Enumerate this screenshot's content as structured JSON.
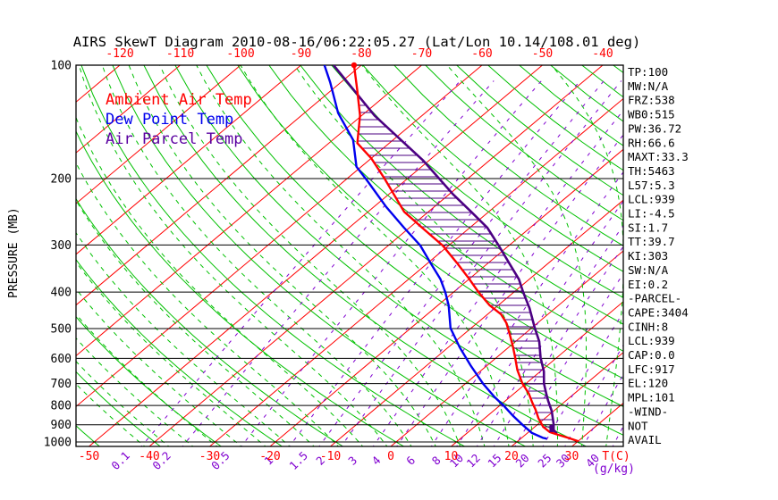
{
  "title": "AIRS SkewT Diagram 2010-08-16/06:22:05.27 (Lat/Lon 10.14/108.01 deg)",
  "colors": {
    "ambient": "#ff0000",
    "dewpoint": "#0000ee",
    "parcel": "#4b0082",
    "isotherm": "#ff0000",
    "dry_adiabat": "#00c000",
    "moist_adiabat": "#00c000",
    "mixing_ratio": "#8000d0",
    "pressure_line": "#000000",
    "hatch": "#4b0082"
  },
  "legend": [
    {
      "label": "Ambient Air Temp",
      "color": "#ff0000"
    },
    {
      "label": "Dew Point Temp",
      "color": "#0000ee"
    },
    {
      "label": "Air Parcel Temp",
      "color": "#5a00a0"
    }
  ],
  "axes": {
    "pressure_title": "PRESSURE (MB)",
    "pressure_ticks": [
      100,
      200,
      300,
      400,
      500,
      600,
      700,
      800,
      900,
      1000
    ],
    "top_temp_ticks": [
      -120,
      -110,
      -100,
      -90,
      -80,
      -70,
      -60,
      -50,
      -40
    ],
    "bottom_temp_ticks": [
      -50,
      -40,
      -30,
      -20,
      -10,
      0,
      10,
      20,
      30
    ],
    "temp_unit": "T(C)",
    "mixing_ratio_ticks": [
      0.1,
      0.2,
      0.5,
      1,
      1.5,
      2,
      3,
      4,
      6,
      8,
      10,
      12,
      15,
      20,
      25,
      30,
      40
    ],
    "mixing_ratio_unit": "(g/kg)"
  },
  "stats": [
    "TP:100",
    "MW:N/A",
    "FRZ:538",
    "WB0:515",
    "PW:36.72",
    "RH:66.6",
    "MAXT:33.3",
    "TH:5463",
    "L57:5.3",
    "LCL:939",
    "LI:-4.5",
    "SI:1.7",
    "TT:39.7",
    "KI:303",
    "SW:N/A",
    "EI:0.2",
    "-PARCEL-",
    "CAPE:3404",
    "CINH:8",
    "LCL:939",
    "CAP:0.0",
    "LFC:917",
    "EL:120",
    "MPL:101",
    "-WIND-",
    "NOT",
    "AVAIL"
  ],
  "chart_data": {
    "type": "line",
    "title": "AIRS SkewT Diagram 2010-08-16/06:22:05.27 (Lat/Lon 10.14/108.01 deg)",
    "xlabel": "T(C)",
    "ylabel": "PRESSURE (MB)",
    "y_scale": "log-inverted",
    "ylim": [
      1040,
      100
    ],
    "x_skew": "45deg-right",
    "xlim_bottom": [
      -52,
      38.5
    ],
    "xlim_top": [
      -127,
      -36.5
    ],
    "grid": {
      "isotherms_C": {
        "from": -120,
        "to": 30,
        "step": 10
      },
      "dry_adiabats_thetaC": {
        "from": -60,
        "to": 190,
        "step": 10
      },
      "moist_adiabats_startC_at_1040mb": {
        "from": -40,
        "to": 36,
        "step": 4
      },
      "mixing_ratio_gkg": [
        0.1,
        0.2,
        0.5,
        1,
        1.5,
        2,
        3,
        4,
        6,
        8,
        10,
        12,
        15,
        20,
        25,
        30,
        40
      ]
    },
    "series": [
      {
        "name": "Ambient Air Temp",
        "color": "#ff0000",
        "units": [
          "mb",
          "C"
        ],
        "points": [
          [
            995,
            30.0
          ],
          [
            975,
            27.7
          ],
          [
            955,
            25.2
          ],
          [
            941,
            23.5
          ],
          [
            912,
            21.4
          ],
          [
            865,
            18.9
          ],
          [
            820,
            16.7
          ],
          [
            786,
            14.8
          ],
          [
            745,
            12.5
          ],
          [
            698,
            9.3
          ],
          [
            644,
            5.9
          ],
          [
            594,
            2.9
          ],
          [
            556,
            0.4
          ],
          [
            519,
            -2.3
          ],
          [
            483,
            -5.2
          ],
          [
            458,
            -7.8
          ],
          [
            434,
            -11.4
          ],
          [
            400,
            -15.9
          ],
          [
            370,
            -19.9
          ],
          [
            336,
            -25.0
          ],
          [
            301,
            -31.0
          ],
          [
            270,
            -37.9
          ],
          [
            245,
            -44.0
          ],
          [
            200,
            -53.8
          ],
          [
            177,
            -59.9
          ],
          [
            161,
            -65.3
          ],
          [
            136,
            -70.3
          ],
          [
            116,
            -75.9
          ],
          [
            100,
            -81.2
          ]
        ]
      },
      {
        "name": "Dew Point Temp",
        "color": "#0000ee",
        "units": [
          "mb",
          "C"
        ],
        "points": [
          [
            980,
            24.3
          ],
          [
            975,
            23.5
          ],
          [
            946,
            20.7
          ],
          [
            898,
            17.4
          ],
          [
            852,
            14.2
          ],
          [
            800,
            10.6
          ],
          [
            759,
            7.4
          ],
          [
            700,
            2.9
          ],
          [
            627,
            -2.7
          ],
          [
            561,
            -8.1
          ],
          [
            499,
            -13.4
          ],
          [
            434,
            -18.2
          ],
          [
            400,
            -21.4
          ],
          [
            370,
            -24.7
          ],
          [
            336,
            -29.4
          ],
          [
            301,
            -34.7
          ],
          [
            270,
            -40.9
          ],
          [
            238,
            -47.9
          ],
          [
            202,
            -56.4
          ],
          [
            186,
            -60.8
          ],
          [
            158,
            -66.6
          ],
          [
            134,
            -74.4
          ],
          [
            111,
            -81.8
          ],
          [
            100,
            -86.1
          ]
        ]
      },
      {
        "name": "Air Parcel Temp",
        "color": "#4b0082",
        "units": [
          "mb",
          "C"
        ],
        "points": [
          [
            950,
            25.0
          ],
          [
            921,
            23.2
          ],
          [
            897,
            22.6
          ],
          [
            828,
            19.7
          ],
          [
            778,
            17.1
          ],
          [
            749,
            15.6
          ],
          [
            700,
            13.0
          ],
          [
            650,
            10.6
          ],
          [
            597,
            7.3
          ],
          [
            541,
            3.9
          ],
          [
            498,
            0.5
          ],
          [
            441,
            -4.3
          ],
          [
            400,
            -8.5
          ],
          [
            370,
            -11.7
          ],
          [
            336,
            -16.4
          ],
          [
            301,
            -21.7
          ],
          [
            270,
            -27.1
          ],
          [
            245,
            -32.9
          ],
          [
            220,
            -39.4
          ],
          [
            179,
            -51.0
          ],
          [
            136,
            -67.9
          ],
          [
            100,
            -84.6
          ]
        ]
      }
    ],
    "markers": [
      {
        "name": "parcel-start-marker",
        "shape": "square",
        "color": "#4b0082",
        "point": [
          921,
          23.2
        ]
      },
      {
        "name": "ambient-top-marker",
        "shape": "dot",
        "color": "#ff0000",
        "point": [
          100,
          -81.2
        ]
      }
    ],
    "hatched_area": "between Ambient Air Temp and Air Parcel Temp curves (CAPE region), horizontal purple hatching"
  }
}
